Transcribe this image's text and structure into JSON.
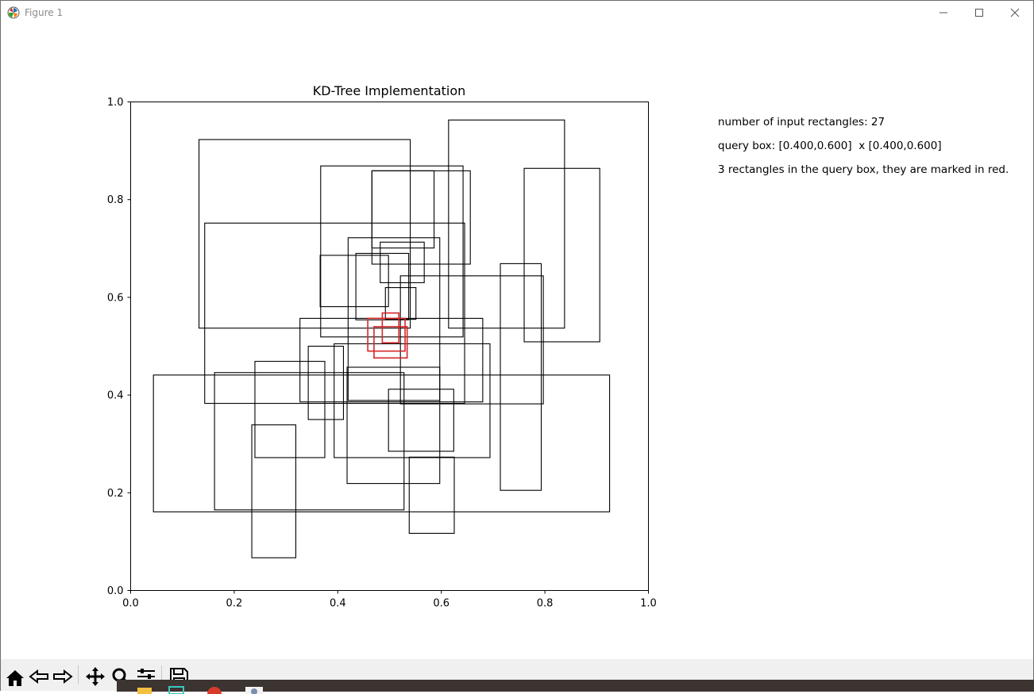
{
  "window": {
    "title": "Figure 1",
    "minimize_icon": "minimize-icon",
    "maximize_icon": "maximize-icon",
    "close_icon": "close-icon"
  },
  "info": {
    "line1": "number of input rectangles: 27",
    "line2": "query box: [0.400,0.600]  x [0.400,0.600]",
    "line3": "3 rectangles in the query box, they are marked in red."
  },
  "chart_data": {
    "type": "rectangles",
    "title": "KD-Tree Implementation",
    "xlim": [
      0,
      1
    ],
    "ylim": [
      0,
      1
    ],
    "xticks": [
      "0.0",
      "0.2",
      "0.4",
      "0.6",
      "0.8",
      "1.0"
    ],
    "yticks": [
      "0.0",
      "0.2",
      "0.4",
      "0.6",
      "0.8",
      "1.0"
    ],
    "grid": false,
    "colors": {
      "normal": "#000000",
      "in_query": "#d62728"
    },
    "rectangles": [
      {
        "x0": 0.132,
        "x1": 0.54,
        "y0": 0.537,
        "y1": 0.923
      },
      {
        "x0": 0.614,
        "x1": 0.838,
        "y0": 0.537,
        "y1": 0.963
      },
      {
        "x0": 0.367,
        "x1": 0.642,
        "y0": 0.519,
        "y1": 0.869
      },
      {
        "x0": 0.466,
        "x1": 0.656,
        "y0": 0.668,
        "y1": 0.859
      },
      {
        "x0": 0.466,
        "x1": 0.586,
        "y0": 0.701,
        "y1": 0.859
      },
      {
        "x0": 0.76,
        "x1": 0.906,
        "y0": 0.509,
        "y1": 0.864
      },
      {
        "x0": 0.143,
        "x1": 0.645,
        "y0": 0.383,
        "y1": 0.752
      },
      {
        "x0": 0.42,
        "x1": 0.597,
        "y0": 0.389,
        "y1": 0.722
      },
      {
        "x0": 0.482,
        "x1": 0.567,
        "y0": 0.63,
        "y1": 0.713
      },
      {
        "x0": 0.366,
        "x1": 0.498,
        "y0": 0.581,
        "y1": 0.686
      },
      {
        "x0": 0.435,
        "x1": 0.537,
        "y0": 0.554,
        "y1": 0.69
      },
      {
        "x0": 0.492,
        "x1": 0.551,
        "y0": 0.555,
        "y1": 0.62
      },
      {
        "x0": 0.521,
        "x1": 0.797,
        "y0": 0.382,
        "y1": 0.644
      },
      {
        "x0": 0.714,
        "x1": 0.793,
        "y0": 0.205,
        "y1": 0.669
      },
      {
        "x0": 0.327,
        "x1": 0.68,
        "y0": 0.386,
        "y1": 0.557
      },
      {
        "x0": 0.343,
        "x1": 0.411,
        "y0": 0.35,
        "y1": 0.5
      },
      {
        "x0": 0.393,
        "x1": 0.694,
        "y0": 0.272,
        "y1": 0.505
      },
      {
        "x0": 0.044,
        "x1": 0.925,
        "y0": 0.161,
        "y1": 0.441
      },
      {
        "x0": 0.162,
        "x1": 0.528,
        "y0": 0.165,
        "y1": 0.446
      },
      {
        "x0": 0.24,
        "x1": 0.375,
        "y0": 0.272,
        "y1": 0.469
      },
      {
        "x0": 0.418,
        "x1": 0.597,
        "y0": 0.219,
        "y1": 0.457
      },
      {
        "x0": 0.498,
        "x1": 0.624,
        "y0": 0.285,
        "y1": 0.412
      },
      {
        "x0": 0.234,
        "x1": 0.319,
        "y0": 0.067,
        "y1": 0.339
      },
      {
        "x0": 0.538,
        "x1": 0.625,
        "y0": 0.117,
        "y1": 0.273
      },
      {
        "x0": 0.458,
        "x1": 0.53,
        "y0": 0.49,
        "y1": 0.557,
        "in_query": true
      },
      {
        "x0": 0.486,
        "x1": 0.518,
        "y0": 0.507,
        "y1": 0.568,
        "in_query": true
      },
      {
        "x0": 0.47,
        "x1": 0.534,
        "y0": 0.476,
        "y1": 0.54,
        "in_query": true
      }
    ]
  },
  "toolbar": {
    "icons": [
      "home-icon",
      "back-icon",
      "forward-icon",
      "pan-icon",
      "zoom-icon",
      "configure-subplots-icon",
      "save-icon"
    ]
  }
}
